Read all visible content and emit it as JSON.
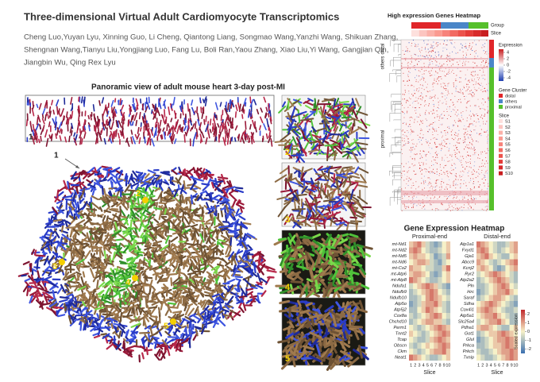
{
  "header": {
    "title": "Three-dimensional Virtual Adult Cardiomyocyte Transcriptomics",
    "authors": [
      "Cheng Luo,Yuyan Lyu, Xinning Guo, Li Cheng, Qiantong Liang, Songmao Wang,Yanzhi Wang, Shikuan Zhang,",
      "Shengnan Wang,Tianyu Liu,Yongjiang Luo, Fang Lu, Boli Ran,Yaou Zhang, Xiao Liu,Yi Wang, Gangjian Qin,",
      "Jiangbin Wu, Qing Rex Lyu"
    ]
  },
  "panorama": {
    "title": "Panoramic view of adult mouse heart 3-day post-MI",
    "strip_label": "1",
    "arrow_label": "1",
    "inset_labels": [
      "2",
      "3",
      "4",
      "5"
    ],
    "dot_labels": [
      "2",
      "3",
      "4",
      "5"
    ]
  },
  "overview_heatmap": {
    "title": "High expression Genes Heatmap",
    "annotations": [
      "Group",
      "Slice"
    ],
    "row_groups": [
      "distal",
      "others",
      "proximal"
    ],
    "expression_legend": {
      "title": "Expression",
      "lim": [
        -5,
        5
      ],
      "ticks": [
        4,
        2,
        0,
        -2,
        -4
      ]
    },
    "cluster_legend": {
      "title": "Gene Cluster",
      "items": [
        {
          "label": "distal",
          "color": "#e0262a"
        },
        {
          "label": "others",
          "color": "#4a86c8"
        },
        {
          "label": "proximal",
          "color": "#56c02b"
        }
      ]
    },
    "slice_legend": {
      "title": "Slice",
      "items": [
        {
          "label": "S1",
          "color": "#fde0dd"
        },
        {
          "label": "S2",
          "color": "#fcc5c0"
        },
        {
          "label": "S3",
          "color": "#fbb0a8"
        },
        {
          "label": "S4",
          "color": "#fa9a90"
        },
        {
          "label": "S5",
          "color": "#f7827a"
        },
        {
          "label": "S6",
          "color": "#f26a62"
        },
        {
          "label": "S7",
          "color": "#ec534c"
        },
        {
          "label": "S8",
          "color": "#e43c38"
        },
        {
          "label": "S9",
          "color": "#d82a2a"
        },
        {
          "label": "S10",
          "color": "#c81e20"
        }
      ]
    }
  },
  "gene_heatmap": {
    "title": "Gene Expression Heatmap",
    "x_ticks": [
      1,
      2,
      3,
      4,
      5,
      6,
      7,
      8,
      9,
      10
    ],
    "x_label": "Slice",
    "colorbar": {
      "label": "Scaled expression",
      "lim": [
        -2.5,
        2.5
      ],
      "ticks": [
        2,
        1,
        0,
        -1,
        -2
      ]
    },
    "panels": [
      {
        "title": "Proximal-end",
        "genes": [
          "mt-Nd1",
          "mt-Nd2",
          "mt-Nd5",
          "mt-Nd6",
          "mt-Co2",
          "mt-Atp6",
          "mt-Atp8",
          "Ndufa1",
          "Ndufb9",
          "Ndufb10",
          "Atp5o",
          "Atp5j2",
          "Cox8a",
          "Chchd10",
          "Perm1",
          "Tnnt2",
          "Tcap",
          "Obscn",
          "Ckm",
          "Neat1"
        ],
        "values": [
          [
            0.5,
            1,
            1.5,
            0.5,
            -0.5,
            -1,
            -1.5,
            -1,
            0,
            0.5
          ],
          [
            1,
            1.5,
            1,
            0,
            -0.5,
            -1,
            -1,
            -0.5,
            0,
            0.5
          ],
          [
            0.5,
            1,
            0.5,
            0.5,
            0,
            -0.5,
            -1.5,
            -1,
            -0.5,
            1
          ],
          [
            0,
            0.5,
            1,
            1,
            0.5,
            -0.5,
            -1,
            -1.5,
            -0.5,
            0
          ],
          [
            1,
            0.5,
            0.5,
            0,
            -0.5,
            -0.5,
            -1,
            -1,
            0.5,
            1.5
          ],
          [
            0.5,
            1,
            1,
            0.5,
            0,
            -1,
            -1.5,
            -1,
            0,
            0.5
          ],
          [
            1.5,
            1,
            0.5,
            0,
            -0.5,
            -1,
            -1,
            -0.5,
            0,
            0.5
          ],
          [
            -0.5,
            0,
            0.5,
            1,
            1.5,
            1,
            0.5,
            -0.5,
            -1,
            -1.5
          ],
          [
            -1,
            -0.5,
            0,
            0.5,
            1,
            1.5,
            1,
            0,
            -0.5,
            -1
          ],
          [
            -1,
            -1,
            -0.5,
            0,
            1,
            1.5,
            1,
            0.5,
            0,
            -0.5
          ],
          [
            -1.5,
            -1,
            -0.5,
            0.5,
            1,
            1,
            1.5,
            0.5,
            -0.5,
            -1
          ],
          [
            -1,
            -1,
            0,
            0.5,
            1.5,
            1,
            0.5,
            0,
            -0.5,
            -1
          ],
          [
            -0.5,
            -1,
            -0.5,
            0,
            0.5,
            1,
            1.5,
            1,
            0,
            -0.5
          ],
          [
            -1,
            -0.5,
            0,
            0.5,
            1,
            1,
            0.5,
            0.5,
            -0.5,
            -1
          ],
          [
            0,
            -0.5,
            -1,
            -0.5,
            0,
            0.5,
            1,
            1.5,
            1,
            0.5
          ],
          [
            0.5,
            0,
            -0.5,
            -1,
            -0.5,
            0,
            0.5,
            1,
            1.5,
            1
          ],
          [
            0,
            -0.5,
            -1,
            -1,
            -0.5,
            0.5,
            1,
            1.5,
            1,
            0.5
          ],
          [
            -0.5,
            -1,
            -0.5,
            0,
            0.5,
            0,
            0.5,
            1,
            1.5,
            1
          ],
          [
            0,
            -0.5,
            -1,
            -0.5,
            0,
            0.5,
            1,
            1,
            1.5,
            0.5
          ],
          [
            1.5,
            1,
            0.5,
            0,
            -0.5,
            -1,
            -1,
            -0.5,
            0,
            0.5
          ]
        ]
      },
      {
        "title": "Distal-end",
        "genes": [
          "Atp1a1",
          "Fxyd1",
          "Gja1",
          "Abcc9",
          "Kcnj2",
          "Ryr2",
          "Atp2a2",
          "Pln",
          "Hrc",
          "Saraf",
          "Sdha",
          "Cox4i1",
          "Atp5a1",
          "Slc25a4",
          "Pdha1",
          "Got1",
          "Glul",
          "Prkca",
          "Prkch",
          "Txnip"
        ],
        "values": [
          [
            1.5,
            1,
            0.5,
            0,
            -0.5,
            -1,
            -1,
            -0.5,
            0.5,
            1
          ],
          [
            1,
            1.5,
            1,
            0,
            -0.5,
            -1,
            -0.5,
            0,
            0.5,
            1
          ],
          [
            0.5,
            1,
            1.5,
            0.5,
            0,
            -0.5,
            -1,
            -1,
            0,
            0.5
          ],
          [
            1,
            0.5,
            0,
            -0.5,
            -1,
            -0.5,
            0,
            0.5,
            1,
            1.5
          ],
          [
            0.5,
            1,
            0.5,
            0,
            -1,
            -1.5,
            -1,
            0,
            0.5,
            1
          ],
          [
            -0.5,
            0,
            0.5,
            1,
            1.5,
            1,
            0.5,
            0,
            -0.5,
            -1
          ],
          [
            -1,
            -0.5,
            0,
            0.5,
            1,
            1.5,
            1,
            0.5,
            -0.5,
            -1
          ],
          [
            -1,
            -1,
            -0.5,
            0,
            0.5,
            1,
            1.5,
            1,
            0,
            -0.5
          ],
          [
            -1.5,
            -1,
            -0.5,
            0,
            0.5,
            1,
            1,
            1.5,
            0.5,
            0
          ],
          [
            -1,
            -0.5,
            0,
            0.5,
            1,
            1,
            0.5,
            0,
            -0.5,
            -1
          ],
          [
            0,
            0.5,
            1,
            1.5,
            1,
            0.5,
            0,
            -0.5,
            -1,
            -1.5
          ],
          [
            0.5,
            1,
            1.5,
            1,
            0.5,
            0,
            -0.5,
            -1,
            -1,
            -0.5
          ],
          [
            0,
            0.5,
            1,
            1,
            1.5,
            0.5,
            0,
            -0.5,
            -1,
            -1
          ],
          [
            -0.5,
            0,
            0.5,
            1,
            1,
            1.5,
            0.5,
            0,
            -1,
            -1
          ],
          [
            0.5,
            1,
            1,
            0.5,
            0,
            -0.5,
            -1,
            -1,
            0,
            0.5
          ],
          [
            -1,
            -0.5,
            0,
            0.5,
            0.5,
            1,
            1.5,
            1,
            0.5,
            0
          ],
          [
            -1.5,
            -1,
            -0.5,
            0,
            0.5,
            1,
            1,
            1.5,
            1,
            0.5
          ],
          [
            -1,
            -1,
            -0.5,
            0,
            0.5,
            0.5,
            1,
            1.5,
            1,
            0.5
          ],
          [
            -0.5,
            -1,
            -1,
            -0.5,
            0,
            0.5,
            1,
            1,
            1.5,
            1
          ],
          [
            0,
            -0.5,
            -1,
            -1,
            -0.5,
            0,
            0.5,
            1,
            1.5,
            1
          ]
        ]
      }
    ]
  }
}
